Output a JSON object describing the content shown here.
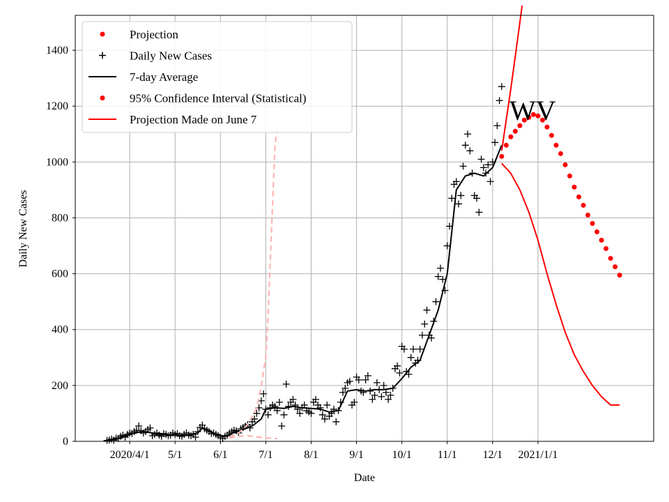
{
  "chart_data": {
    "type": "line",
    "title": "",
    "xlabel": "Date",
    "ylabel": "Daily New Cases",
    "annotation": "WV",
    "grid": true,
    "legend_position": "top-left",
    "xlim_days": [
      -24,
      231
    ],
    "ylim": [
      0,
      1525
    ],
    "x_ticks": [
      {
        "day": 0,
        "label": "2020/4/1"
      },
      {
        "day": 20,
        "label": "5/1"
      },
      {
        "day": 40,
        "label": "6/1"
      },
      {
        "day": 60,
        "label": "7/1"
      },
      {
        "day": 80,
        "label": "8/1"
      },
      {
        "day": 100,
        "label": "9/1"
      },
      {
        "day": 120,
        "label": "10/1"
      },
      {
        "day": 140,
        "label": "11/1"
      },
      {
        "day": 160,
        "label": "12/1"
      },
      {
        "day": 180,
        "label": "2021/1/1"
      }
    ],
    "y_ticks": [
      0,
      200,
      400,
      600,
      800,
      1000,
      1200,
      1400
    ],
    "legend": [
      {
        "label": "Projection",
        "marker": "dot",
        "color": "#ff0000"
      },
      {
        "label": "Daily New Cases",
        "marker": "plus",
        "color": "#000000"
      },
      {
        "label": "7-day Average",
        "marker": "line",
        "color": "#000000"
      },
      {
        "label": "95% Confidence Interval (Statistical)",
        "marker": "dot",
        "color": "#ff0000"
      },
      {
        "label": "Projection Made on June 7",
        "marker": "line",
        "color": "#ff0000"
      }
    ],
    "series": [
      {
        "name": "Daily New Cases",
        "style": "plus",
        "color": "#000000",
        "points": [
          [
            -10,
            3
          ],
          [
            -9,
            5
          ],
          [
            -8,
            8
          ],
          [
            -7,
            4
          ],
          [
            -6,
            12
          ],
          [
            -5,
            10
          ],
          [
            -4,
            18
          ],
          [
            -3,
            22
          ],
          [
            -2,
            15
          ],
          [
            -1,
            25
          ],
          [
            0,
            30
          ],
          [
            1,
            28
          ],
          [
            2,
            35
          ],
          [
            3,
            40
          ],
          [
            4,
            55
          ],
          [
            5,
            38
          ],
          [
            6,
            30
          ],
          [
            7,
            35
          ],
          [
            8,
            42
          ],
          [
            9,
            48
          ],
          [
            10,
            20
          ],
          [
            11,
            25
          ],
          [
            12,
            30
          ],
          [
            13,
            22
          ],
          [
            14,
            18
          ],
          [
            15,
            28
          ],
          [
            16,
            25
          ],
          [
            17,
            20
          ],
          [
            18,
            22
          ],
          [
            19,
            30
          ],
          [
            20,
            25
          ],
          [
            21,
            28
          ],
          [
            22,
            20
          ],
          [
            23,
            18
          ],
          [
            24,
            25
          ],
          [
            25,
            30
          ],
          [
            26,
            22
          ],
          [
            27,
            20
          ],
          [
            28,
            25
          ],
          [
            29,
            15
          ],
          [
            30,
            35
          ],
          [
            31,
            50
          ],
          [
            32,
            58
          ],
          [
            33,
            45
          ],
          [
            34,
            40
          ],
          [
            35,
            35
          ],
          [
            36,
            28
          ],
          [
            37,
            30
          ],
          [
            38,
            25
          ],
          [
            39,
            20
          ],
          [
            40,
            15
          ],
          [
            41,
            10
          ],
          [
            42,
            18
          ],
          [
            43,
            22
          ],
          [
            44,
            30
          ],
          [
            45,
            35
          ],
          [
            46,
            40
          ],
          [
            47,
            38
          ],
          [
            48,
            30
          ],
          [
            49,
            45
          ],
          [
            50,
            50
          ],
          [
            51,
            55
          ],
          [
            52,
            60
          ],
          [
            53,
            48
          ],
          [
            54,
            70
          ],
          [
            55,
            80
          ],
          [
            56,
            100
          ],
          [
            57,
            120
          ],
          [
            58,
            145
          ],
          [
            59,
            170
          ],
          [
            60,
            115
          ],
          [
            61,
            95
          ],
          [
            62,
            120
          ],
          [
            63,
            130
          ],
          [
            64,
            125
          ],
          [
            65,
            110
          ],
          [
            66,
            140
          ],
          [
            67,
            55
          ],
          [
            68,
            95
          ],
          [
            69,
            205
          ],
          [
            70,
            125
          ],
          [
            71,
            140
          ],
          [
            72,
            150
          ],
          [
            73,
            130
          ],
          [
            74,
            115
          ],
          [
            75,
            100
          ],
          [
            76,
            120
          ],
          [
            77,
            130
          ],
          [
            78,
            110
          ],
          [
            79,
            105
          ],
          [
            80,
            100
          ],
          [
            81,
            140
          ],
          [
            82,
            150
          ],
          [
            83,
            130
          ],
          [
            84,
            120
          ],
          [
            85,
            95
          ],
          [
            86,
            80
          ],
          [
            87,
            130
          ],
          [
            88,
            90
          ],
          [
            89,
            100
          ],
          [
            90,
            115
          ],
          [
            91,
            70
          ],
          [
            92,
            110
          ],
          [
            93,
            140
          ],
          [
            94,
            175
          ],
          [
            95,
            190
          ],
          [
            96,
            210
          ],
          [
            97,
            215
          ],
          [
            98,
            130
          ],
          [
            99,
            140
          ],
          [
            100,
            230
          ],
          [
            101,
            220
          ],
          [
            102,
            180
          ],
          [
            103,
            175
          ],
          [
            104,
            220
          ],
          [
            105,
            235
          ],
          [
            106,
            180
          ],
          [
            107,
            150
          ],
          [
            108,
            165
          ],
          [
            109,
            210
          ],
          [
            110,
            185
          ],
          [
            111,
            160
          ],
          [
            112,
            200
          ],
          [
            113,
            175
          ],
          [
            114,
            150
          ],
          [
            115,
            165
          ],
          [
            116,
            190
          ],
          [
            117,
            260
          ],
          [
            118,
            270
          ],
          [
            119,
            245
          ],
          [
            120,
            340
          ],
          [
            121,
            330
          ],
          [
            122,
            250
          ],
          [
            123,
            240
          ],
          [
            124,
            300
          ],
          [
            125,
            330
          ],
          [
            126,
            280
          ],
          [
            127,
            290
          ],
          [
            128,
            330
          ],
          [
            129,
            380
          ],
          [
            130,
            420
          ],
          [
            131,
            470
          ],
          [
            132,
            380
          ],
          [
            133,
            370
          ],
          [
            134,
            430
          ],
          [
            135,
            500
          ],
          [
            136,
            590
          ],
          [
            137,
            620
          ],
          [
            138,
            580
          ],
          [
            139,
            540
          ],
          [
            140,
            700
          ],
          [
            141,
            770
          ],
          [
            142,
            870
          ],
          [
            143,
            920
          ],
          [
            144,
            930
          ],
          [
            145,
            850
          ],
          [
            146,
            880
          ],
          [
            147,
            985
          ],
          [
            148,
            1060
          ],
          [
            149,
            1100
          ],
          [
            150,
            1040
          ],
          [
            151,
            960
          ],
          [
            152,
            880
          ],
          [
            153,
            870
          ],
          [
            154,
            820
          ],
          [
            155,
            1010
          ],
          [
            156,
            980
          ],
          [
            157,
            960
          ],
          [
            158,
            990
          ],
          [
            159,
            930
          ],
          [
            160,
            1000
          ],
          [
            161,
            1070
          ],
          [
            162,
            1130
          ],
          [
            163,
            1220
          ],
          [
            164,
            1270
          ]
        ]
      },
      {
        "name": "7-day Average",
        "style": "line",
        "color": "#000000",
        "points": [
          [
            -10,
            2
          ],
          [
            -6,
            8
          ],
          [
            -2,
            18
          ],
          [
            2,
            30
          ],
          [
            6,
            35
          ],
          [
            10,
            30
          ],
          [
            14,
            25
          ],
          [
            18,
            23
          ],
          [
            22,
            22
          ],
          [
            26,
            24
          ],
          [
            30,
            30
          ],
          [
            32,
            48
          ],
          [
            34,
            42
          ],
          [
            38,
            25
          ],
          [
            42,
            18
          ],
          [
            46,
            32
          ],
          [
            50,
            42
          ],
          [
            54,
            55
          ],
          [
            58,
            80
          ],
          [
            60,
            115
          ],
          [
            64,
            120
          ],
          [
            68,
            118
          ],
          [
            72,
            125
          ],
          [
            76,
            120
          ],
          [
            80,
            118
          ],
          [
            84,
            115
          ],
          [
            88,
            105
          ],
          [
            92,
            110
          ],
          [
            96,
            180
          ],
          [
            100,
            185
          ],
          [
            104,
            180
          ],
          [
            108,
            185
          ],
          [
            112,
            185
          ],
          [
            116,
            190
          ],
          [
            120,
            225
          ],
          [
            124,
            265
          ],
          [
            128,
            290
          ],
          [
            132,
            380
          ],
          [
            136,
            470
          ],
          [
            140,
            600
          ],
          [
            144,
            900
          ],
          [
            148,
            950
          ],
          [
            152,
            960
          ],
          [
            156,
            950
          ],
          [
            160,
            980
          ],
          [
            164,
            1060
          ]
        ]
      },
      {
        "name": "Projection",
        "style": "dot",
        "color": "#ff0000",
        "points": [
          [
            164,
            1020
          ],
          [
            166,
            1060
          ],
          [
            168,
            1090
          ],
          [
            170,
            1110
          ],
          [
            172,
            1130
          ],
          [
            174,
            1150
          ],
          [
            176,
            1160
          ],
          [
            178,
            1170
          ],
          [
            180,
            1165
          ],
          [
            182,
            1150
          ],
          [
            184,
            1125
          ],
          [
            186,
            1095
          ],
          [
            188,
            1060
          ],
          [
            190,
            1030
          ],
          [
            192,
            990
          ],
          [
            194,
            950
          ],
          [
            196,
            910
          ],
          [
            198,
            875
          ],
          [
            200,
            845
          ],
          [
            202,
            810
          ],
          [
            204,
            780
          ],
          [
            206,
            750
          ],
          [
            208,
            720
          ],
          [
            210,
            690
          ],
          [
            212,
            655
          ],
          [
            214,
            625
          ],
          [
            216,
            595
          ]
        ]
      },
      {
        "name": "95% Confidence Interval (Statistical)",
        "style": "line",
        "color": "#ff0000",
        "points": [
          [
            164,
            1040
          ],
          [
            166,
            1150
          ],
          [
            168,
            1260
          ],
          [
            170,
            1380
          ],
          [
            172,
            1500
          ],
          [
            173,
            1560
          ]
        ]
      },
      {
        "name": "95% Confidence Interval (Statistical) lower",
        "style": "line",
        "color": "#ff0000",
        "points": [
          [
            164,
            995
          ],
          [
            168,
            960
          ],
          [
            172,
            900
          ],
          [
            176,
            820
          ],
          [
            180,
            720
          ],
          [
            184,
            600
          ],
          [
            188,
            490
          ],
          [
            192,
            390
          ],
          [
            196,
            310
          ],
          [
            200,
            250
          ],
          [
            204,
            200
          ],
          [
            208,
            160
          ],
          [
            212,
            130
          ],
          [
            216,
            130
          ]
        ]
      },
      {
        "name": "Projection Made on June 7",
        "style": "dashed",
        "color": "#ffb4b4",
        "points": [
          [
            44,
            15
          ],
          [
            48,
            30
          ],
          [
            52,
            60
          ],
          [
            56,
            120
          ],
          [
            58,
            200
          ],
          [
            60,
            300
          ],
          [
            61,
            450
          ],
          [
            62,
            650
          ],
          [
            63,
            850
          ],
          [
            64,
            1050
          ],
          [
            65,
            1130
          ]
        ]
      },
      {
        "name": "Projection Made on June 7 lower",
        "style": "dashed",
        "color": "#ffb4b4",
        "points": [
          [
            44,
            12
          ],
          [
            48,
            18
          ],
          [
            52,
            20
          ],
          [
            56,
            16
          ],
          [
            60,
            12
          ],
          [
            64,
            10
          ],
          [
            65,
            10
          ]
        ]
      }
    ]
  }
}
